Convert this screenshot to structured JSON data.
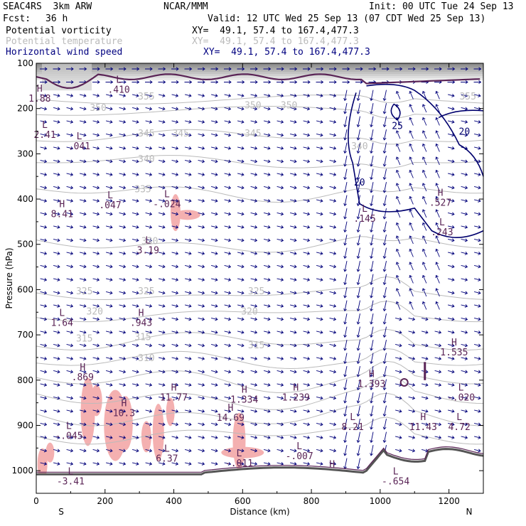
{
  "header": {
    "model": "SEAC4RS  3km ARW",
    "org": "NCAR/MMM",
    "init": "Init: 00 UTC Tue 24 Sep 13",
    "fcst_label": "Fcst:",
    "fcst_value": "36 h",
    "valid": "Valid: 12 UTC Wed 25 Sep 13 (07 CDT Wed 25 Sep 13)",
    "fields": [
      {
        "name": "Potential vorticity",
        "xy": "XY=  49.1, 57.4 to 167.4,477.3",
        "color": "#000000"
      },
      {
        "name": "Potential temperature",
        "xy": "XY=  49.1, 57.4 to 167.4,477.3",
        "color": "#bbbbbb"
      },
      {
        "name": "Horizontal wind speed",
        "xy": "XY=  49.1, 57.4 to 167.4,477.3",
        "color": "#000080"
      }
    ]
  },
  "chart_data": {
    "type": "cross-section",
    "xlabel": "Distance (km)",
    "ylabel": "Pressure (hPa)",
    "xlim": [
      0,
      1300
    ],
    "ylim": [
      1050,
      100
    ],
    "x_ticks": [
      0,
      200,
      400,
      600,
      800,
      1000,
      1200
    ],
    "y_ticks": [
      100,
      200,
      300,
      400,
      500,
      600,
      700,
      800,
      900,
      1000
    ],
    "x_end_labels": {
      "left": "S",
      "right": "N"
    },
    "theta_labels": [
      {
        "x": 320,
        "p": 180,
        "v": "355"
      },
      {
        "x": 1255,
        "p": 180,
        "v": "355"
      },
      {
        "x": 180,
        "p": 205,
        "v": "350"
      },
      {
        "x": 630,
        "p": 200,
        "v": "350"
      },
      {
        "x": 735,
        "p": 200,
        "v": "350"
      },
      {
        "x": 320,
        "p": 262,
        "v": "345"
      },
      {
        "x": 420,
        "p": 262,
        "v": "345"
      },
      {
        "x": 630,
        "p": 262,
        "v": "345"
      },
      {
        "x": 320,
        "p": 318,
        "v": "340"
      },
      {
        "x": 940,
        "p": 290,
        "v": "340"
      },
      {
        "x": 310,
        "p": 385,
        "v": "335"
      },
      {
        "x": 330,
        "p": 500,
        "v": "330"
      },
      {
        "x": 140,
        "p": 610,
        "v": "325"
      },
      {
        "x": 320,
        "p": 610,
        "v": "325"
      },
      {
        "x": 640,
        "p": 610,
        "v": "325"
      },
      {
        "x": 170,
        "p": 655,
        "v": "320"
      },
      {
        "x": 620,
        "p": 655,
        "v": "320"
      },
      {
        "x": 140,
        "p": 715,
        "v": "315"
      },
      {
        "x": 310,
        "p": 712,
        "v": "315"
      },
      {
        "x": 640,
        "p": 730,
        "v": "315"
      },
      {
        "x": 320,
        "p": 758,
        "v": "310"
      }
    ],
    "wind_labels": [
      {
        "x": 1050,
        "p": 245,
        "v": "25"
      },
      {
        "x": 1245,
        "p": 258,
        "v": "20"
      },
      {
        "x": 940,
        "p": 370,
        "v": "20"
      }
    ],
    "pv_extrema": [
      {
        "x": 10,
        "p": 185,
        "t": "H",
        "v": "1.88"
      },
      {
        "x": 240,
        "p": 165,
        "t": "L",
        "v": ".410"
      },
      {
        "x": 25,
        "p": 265,
        "t": "L",
        "v": "2.41"
      },
      {
        "x": 125,
        "p": 290,
        "t": "L",
        "v": ".041"
      },
      {
        "x": 215,
        "p": 420,
        "t": "L",
        "v": ".047"
      },
      {
        "x": 380,
        "p": 418,
        "t": "L",
        "v": "-.024"
      },
      {
        "x": 75,
        "p": 440,
        "t": "H",
        "v": "8.41"
      },
      {
        "x": 325,
        "p": 520,
        "t": "L",
        "v": "3.19"
      },
      {
        "x": 955,
        "p": 450,
        "t": "L",
        "v": ".145"
      },
      {
        "x": 1175,
        "p": 415,
        "t": "H",
        "v": ".527"
      },
      {
        "x": 1180,
        "p": 480,
        "t": "L",
        "v": ".243"
      },
      {
        "x": 75,
        "p": 680,
        "t": "L",
        "v": "1.64"
      },
      {
        "x": 305,
        "p": 680,
        "t": "H",
        "v": ".943"
      },
      {
        "x": 1215,
        "p": 745,
        "t": "H",
        "v": "1.535"
      },
      {
        "x": 135,
        "p": 800,
        "t": "H",
        "v": ".869"
      },
      {
        "x": 400,
        "p": 845,
        "t": "H",
        "v": "11.77"
      },
      {
        "x": 255,
        "p": 880,
        "t": "H",
        "v": "10.3"
      },
      {
        "x": 605,
        "p": 850,
        "t": "H",
        "v": "1.334"
      },
      {
        "x": 755,
        "p": 845,
        "t": "H",
        "v": "1.239"
      },
      {
        "x": 565,
        "p": 890,
        "t": "H",
        "v": "14.69"
      },
      {
        "x": 975,
        "p": 815,
        "t": "H",
        "v": "1.393"
      },
      {
        "x": 1235,
        "p": 845,
        "t": "L",
        "v": "-.020"
      },
      {
        "x": 95,
        "p": 930,
        "t": "L",
        "v": "-.045"
      },
      {
        "x": 920,
        "p": 910,
        "t": "L",
        "v": "8.21"
      },
      {
        "x": 1125,
        "p": 910,
        "t": "H",
        "v": "11.43"
      },
      {
        "x": 1230,
        "p": 910,
        "t": "L",
        "v": "4.72"
      },
      {
        "x": 380,
        "p": 980,
        "t": "L",
        "v": "6.37"
      },
      {
        "x": 590,
        "p": 990,
        "t": "L",
        "v": "-.011"
      },
      {
        "x": 765,
        "p": 975,
        "t": "L",
        "v": "-.007"
      },
      {
        "x": 100,
        "p": 1030,
        "t": "L",
        "v": "-3.41"
      },
      {
        "x": 1045,
        "p": 1030,
        "t": "L",
        "v": "-.654"
      },
      {
        "x": 860,
        "p": 1015,
        "t": "H",
        "v": ""
      }
    ],
    "colors": {
      "pv": "#5a2456",
      "theta": "#bbbbbb",
      "wind": "#00007a",
      "high_pv_fill": "#f4b0b0",
      "terrain": "#555555"
    }
  }
}
